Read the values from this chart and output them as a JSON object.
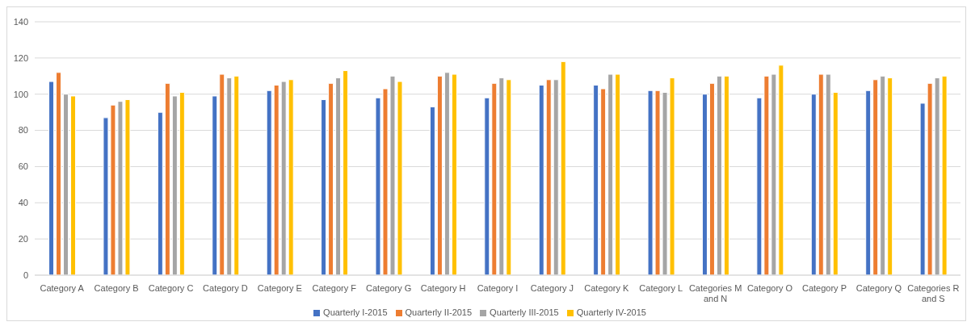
{
  "chart_data": {
    "type": "bar",
    "categories": [
      "Category A",
      "Category B",
      "Category C",
      "Category D",
      "Category E",
      "Category F",
      "Category G",
      "Category H",
      "Category I",
      "Category J",
      "Category K",
      "Category L",
      "Categories M and N",
      "Category O",
      "Category P",
      "Category Q",
      "Categories R and S"
    ],
    "series": [
      {
        "name": "Quarterly I-2015",
        "color": "#4472c4",
        "values": [
          107,
          87,
          90,
          99,
          102,
          97,
          98,
          93,
          98,
          105,
          105,
          102,
          100,
          98,
          100,
          102,
          95
        ]
      },
      {
        "name": "Quarterly II-2015",
        "color": "#ed7d31",
        "values": [
          112,
          94,
          106,
          111,
          105,
          106,
          103,
          110,
          106,
          108,
          103,
          102,
          106,
          110,
          111,
          108,
          106
        ]
      },
      {
        "name": "Quarterly III-2015",
        "color": "#a5a5a5",
        "values": [
          100,
          96,
          99,
          109,
          107,
          109,
          110,
          112,
          109,
          108,
          111,
          101,
          110,
          111,
          111,
          110,
          109
        ]
      },
      {
        "name": "Quarterly IV-2015",
        "color": "#ffc000",
        "values": [
          99,
          97,
          101,
          110,
          108,
          113,
          107,
          111,
          108,
          118,
          111,
          109,
          110,
          116,
          101,
          109,
          110
        ]
      }
    ],
    "ylim": [
      0,
      140
    ],
    "yticks": [
      0,
      20,
      40,
      60,
      80,
      100,
      120,
      140
    ],
    "grid": "y",
    "legend": "bottom"
  }
}
